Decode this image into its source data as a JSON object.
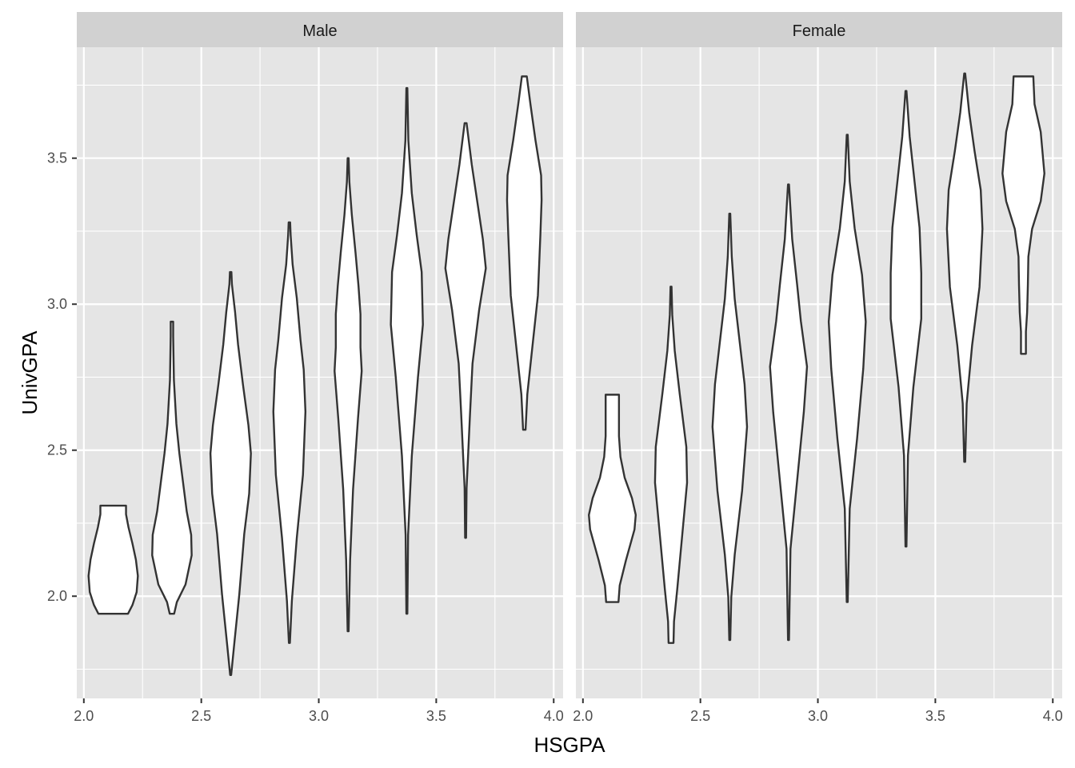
{
  "chart_data": {
    "type": "violin",
    "xlabel": "HSGPA",
    "ylabel": "UnivGPA",
    "xlim": [
      1.97,
      4.04
    ],
    "ylim": [
      1.65,
      3.88
    ],
    "x_ticks": [
      "2.0",
      "2.5",
      "3.0",
      "3.5",
      "4.0"
    ],
    "y_ticks": [
      "2.0",
      "2.5",
      "3.0",
      "3.5"
    ],
    "grid": true,
    "colors": {
      "panel_bg": "#e5e5e5",
      "strip_bg": "#d1d1d1",
      "grid": "#ffffff",
      "violin_fill": "#ffffff",
      "violin_stroke": "#333333"
    },
    "panels": [
      {
        "label": "Male",
        "violins": [
          {
            "x": 2.125,
            "ymin": 1.94,
            "ymax": 2.31,
            "profile": [
              [
                0,
                0.6
              ],
              [
                0.08,
                0.78
              ],
              [
                0.2,
                0.95
              ],
              [
                0.35,
                1.0
              ],
              [
                0.5,
                0.92
              ],
              [
                0.65,
                0.78
              ],
              [
                0.8,
                0.62
              ],
              [
                0.92,
                0.52
              ],
              [
                1,
                0.52
              ]
            ]
          },
          {
            "x": 2.375,
            "ymin": 1.94,
            "ymax": 2.94,
            "profile": [
              [
                0,
                0.09
              ],
              [
                0.04,
                0.2
              ],
              [
                0.1,
                0.55
              ],
              [
                0.2,
                0.8
              ],
              [
                0.27,
                0.78
              ],
              [
                0.35,
                0.6
              ],
              [
                0.45,
                0.45
              ],
              [
                0.55,
                0.3
              ],
              [
                0.65,
                0.18
              ],
              [
                0.8,
                0.08
              ],
              [
                0.95,
                0.05
              ],
              [
                1,
                0.05
              ]
            ]
          },
          {
            "x": 2.625,
            "ymin": 1.73,
            "ymax": 3.11,
            "profile": [
              [
                0,
                0.02
              ],
              [
                0.08,
                0.15
              ],
              [
                0.2,
                0.35
              ],
              [
                0.35,
                0.55
              ],
              [
                0.45,
                0.75
              ],
              [
                0.55,
                0.82
              ],
              [
                0.62,
                0.72
              ],
              [
                0.72,
                0.5
              ],
              [
                0.82,
                0.3
              ],
              [
                0.9,
                0.18
              ],
              [
                0.97,
                0.05
              ],
              [
                1,
                0.03
              ]
            ]
          },
          {
            "x": 2.875,
            "ymin": 1.84,
            "ymax": 3.28,
            "profile": [
              [
                0,
                0.02
              ],
              [
                0.1,
                0.1
              ],
              [
                0.25,
                0.3
              ],
              [
                0.4,
                0.55
              ],
              [
                0.55,
                0.65
              ],
              [
                0.65,
                0.58
              ],
              [
                0.72,
                0.45
              ],
              [
                0.82,
                0.3
              ],
              [
                0.9,
                0.13
              ],
              [
                0.97,
                0.05
              ],
              [
                1,
                0.03
              ]
            ]
          },
          {
            "x": 3.125,
            "ymin": 1.88,
            "ymax": 3.5,
            "profile": [
              [
                0,
                0.02
              ],
              [
                0.15,
                0.08
              ],
              [
                0.3,
                0.2
              ],
              [
                0.45,
                0.4
              ],
              [
                0.55,
                0.55
              ],
              [
                0.6,
                0.5
              ],
              [
                0.67,
                0.5
              ],
              [
                0.73,
                0.42
              ],
              [
                0.8,
                0.3
              ],
              [
                0.88,
                0.15
              ],
              [
                0.95,
                0.05
              ],
              [
                1,
                0.02
              ]
            ]
          },
          {
            "x": 3.375,
            "ymin": 1.94,
            "ymax": 3.74,
            "profile": [
              [
                0,
                0.02
              ],
              [
                0.15,
                0.05
              ],
              [
                0.3,
                0.2
              ],
              [
                0.45,
                0.45
              ],
              [
                0.55,
                0.65
              ],
              [
                0.65,
                0.6
              ],
              [
                0.72,
                0.4
              ],
              [
                0.8,
                0.2
              ],
              [
                0.9,
                0.06
              ],
              [
                1,
                0.02
              ]
            ]
          },
          {
            "x": 3.625,
            "ymin": 2.2,
            "ymax": 3.62,
            "profile": [
              [
                0,
                0.02
              ],
              [
                0.12,
                0.04
              ],
              [
                0.3,
                0.18
              ],
              [
                0.42,
                0.28
              ],
              [
                0.55,
                0.55
              ],
              [
                0.65,
                0.82
              ],
              [
                0.72,
                0.7
              ],
              [
                0.8,
                0.5
              ],
              [
                0.9,
                0.25
              ],
              [
                1,
                0.04
              ]
            ]
          },
          {
            "x": 3.875,
            "ymin": 2.57,
            "ymax": 3.78,
            "profile": [
              [
                0,
                0.05
              ],
              [
                0.1,
                0.12
              ],
              [
                0.25,
                0.35
              ],
              [
                0.38,
                0.55
              ],
              [
                0.55,
                0.65
              ],
              [
                0.65,
                0.7
              ],
              [
                0.72,
                0.68
              ],
              [
                0.82,
                0.45
              ],
              [
                0.92,
                0.25
              ],
              [
                1,
                0.1
              ]
            ]
          }
        ]
      },
      {
        "label": "Female",
        "violins": [
          {
            "x": 2.125,
            "ymin": 1.98,
            "ymax": 2.69,
            "profile": [
              [
                0,
                0.25
              ],
              [
                0.08,
                0.3
              ],
              [
                0.2,
                0.55
              ],
              [
                0.35,
                0.9
              ],
              [
                0.42,
                0.95
              ],
              [
                0.5,
                0.8
              ],
              [
                0.6,
                0.5
              ],
              [
                0.7,
                0.33
              ],
              [
                0.8,
                0.27
              ],
              [
                1,
                0.27
              ]
            ]
          },
          {
            "x": 2.375,
            "ymin": 1.84,
            "ymax": 3.06,
            "profile": [
              [
                0,
                0.1
              ],
              [
                0.06,
                0.12
              ],
              [
                0.15,
                0.25
              ],
              [
                0.3,
                0.45
              ],
              [
                0.45,
                0.65
              ],
              [
                0.55,
                0.62
              ],
              [
                0.7,
                0.35
              ],
              [
                0.82,
                0.15
              ],
              [
                0.92,
                0.05
              ],
              [
                1,
                0.02
              ]
            ]
          },
          {
            "x": 2.625,
            "ymin": 1.85,
            "ymax": 3.31,
            "profile": [
              [
                0,
                0.02
              ],
              [
                0.1,
                0.06
              ],
              [
                0.2,
                0.2
              ],
              [
                0.35,
                0.5
              ],
              [
                0.5,
                0.7
              ],
              [
                0.6,
                0.6
              ],
              [
                0.7,
                0.4
              ],
              [
                0.8,
                0.2
              ],
              [
                0.9,
                0.08
              ],
              [
                1,
                0.02
              ]
            ]
          },
          {
            "x": 2.875,
            "ymin": 1.85,
            "ymax": 3.41,
            "profile": [
              [
                0,
                0.02
              ],
              [
                0.2,
                0.08
              ],
              [
                0.35,
                0.35
              ],
              [
                0.5,
                0.62
              ],
              [
                0.6,
                0.75
              ],
              [
                0.7,
                0.5
              ],
              [
                0.78,
                0.35
              ],
              [
                0.88,
                0.15
              ],
              [
                1,
                0.02
              ]
            ]
          },
          {
            "x": 3.125,
            "ymin": 1.98,
            "ymax": 3.58,
            "profile": [
              [
                0,
                0.02
              ],
              [
                0.2,
                0.1
              ],
              [
                0.35,
                0.4
              ],
              [
                0.5,
                0.65
              ],
              [
                0.6,
                0.75
              ],
              [
                0.7,
                0.6
              ],
              [
                0.8,
                0.3
              ],
              [
                0.9,
                0.1
              ],
              [
                1,
                0.02
              ]
            ]
          },
          {
            "x": 3.375,
            "ymin": 2.17,
            "ymax": 3.73,
            "profile": [
              [
                0,
                0.02
              ],
              [
                0.2,
                0.08
              ],
              [
                0.35,
                0.3
              ],
              [
                0.5,
                0.62
              ],
              [
                0.6,
                0.62
              ],
              [
                0.7,
                0.55
              ],
              [
                0.8,
                0.35
              ],
              [
                0.9,
                0.15
              ],
              [
                1,
                0.02
              ]
            ]
          },
          {
            "x": 3.625,
            "ymin": 2.46,
            "ymax": 3.79,
            "profile": [
              [
                0,
                0.02
              ],
              [
                0.15,
                0.08
              ],
              [
                0.3,
                0.3
              ],
              [
                0.45,
                0.6
              ],
              [
                0.6,
                0.72
              ],
              [
                0.7,
                0.65
              ],
              [
                0.8,
                0.4
              ],
              [
                0.9,
                0.18
              ],
              [
                1,
                0.02
              ]
            ]
          },
          {
            "x": 3.875,
            "ymin": 2.83,
            "ymax": 3.78,
            "profile": [
              [
                0,
                0.1
              ],
              [
                0.08,
                0.1
              ],
              [
                0.15,
                0.15
              ],
              [
                0.25,
                0.18
              ],
              [
                0.35,
                0.2
              ],
              [
                0.45,
                0.35
              ],
              [
                0.55,
                0.7
              ],
              [
                0.65,
                0.85
              ],
              [
                0.8,
                0.7
              ],
              [
                0.9,
                0.45
              ],
              [
                1,
                0.4
              ]
            ]
          }
        ]
      }
    ]
  }
}
